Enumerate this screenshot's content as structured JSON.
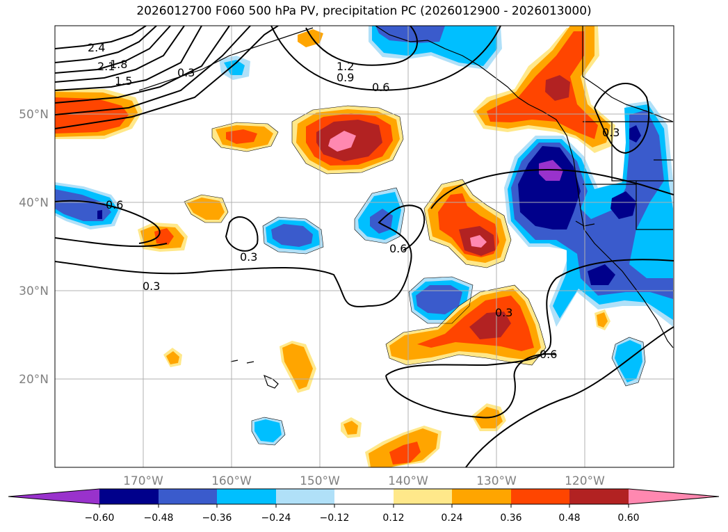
{
  "title": "2026012700 F060 500 hPa PV, precipitation PC (2026012900 - 2026013000)",
  "map": {
    "lon_range": [
      -180,
      -110
    ],
    "lat_range": [
      10,
      60
    ],
    "lon_ticks": [
      {
        "lon": -170,
        "label": "170°W"
      },
      {
        "lon": -160,
        "label": "160°W"
      },
      {
        "lon": -150,
        "label": "150°W"
      },
      {
        "lon": -140,
        "label": "140°W"
      },
      {
        "lon": -130,
        "label": "130°W"
      },
      {
        "lon": -120,
        "label": "120°W"
      }
    ],
    "lat_ticks": [
      {
        "lat": 50,
        "label": "50°N"
      },
      {
        "lat": 40,
        "label": "40°N"
      },
      {
        "lat": 30,
        "label": "30°N"
      },
      {
        "lat": 20,
        "label": "20°N"
      }
    ],
    "contour_labels": [
      "2.4",
      "2.1",
      "1.8",
      "1.5",
      "1.2",
      "0.9",
      "0.6",
      "0.3"
    ]
  },
  "colorbar": {
    "ticks": [
      "−0.60",
      "−0.48",
      "−0.36",
      "−0.24",
      "−0.12",
      "0.12",
      "0.24",
      "0.36",
      "0.48",
      "0.60"
    ],
    "colors": {
      "neg_extend": "#9932cc",
      "neg_060": "#00008b",
      "neg_048": "#3a5bcc",
      "neg_036": "#00bfff",
      "neg_024": "#b0e0f8",
      "neutral": "#ffffff",
      "pos_012": "#ffe88a",
      "pos_024": "#ffa500",
      "pos_036": "#ff4500",
      "pos_048": "#b22222",
      "pos_extend": "#ff88b0"
    }
  }
}
